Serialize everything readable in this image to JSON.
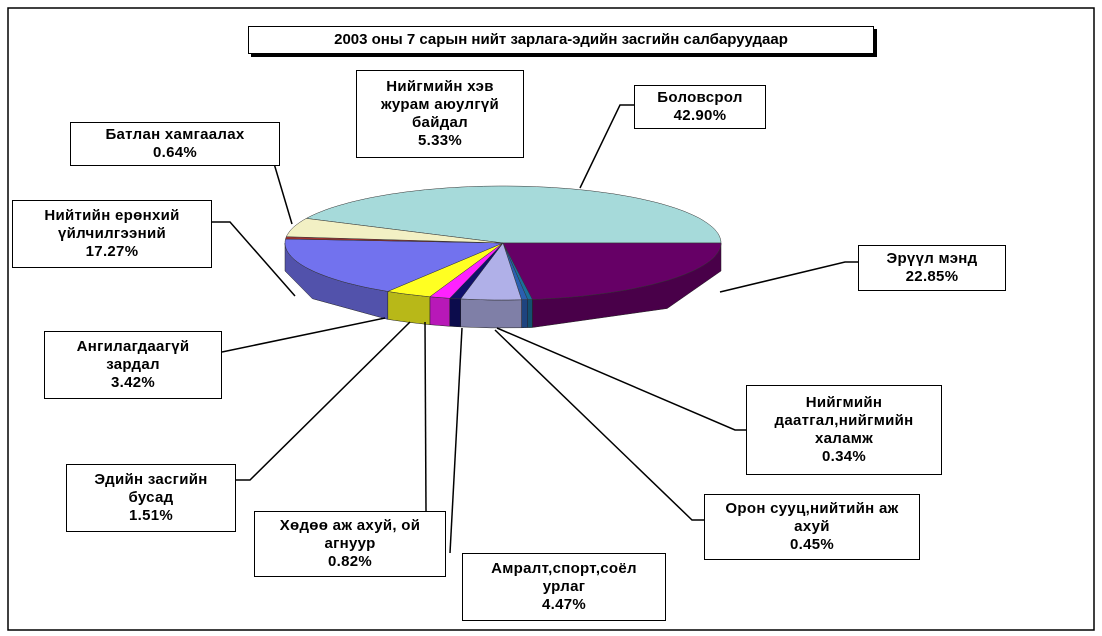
{
  "chart_data": {
    "type": "pie",
    "title": "2003 оны 7 сарын нийт зарлага-эдийн засгийн салбаруудаар",
    "categories": [
      "Боловсрол",
      "Эрүүл мэнд",
      "Нийгмийн даатгал,нийгмийн халамж",
      "Орон сууц,нийтийн аж ахуй",
      "Амралт,спорт,соёл урлаг",
      "Хөдөө аж ахуй, ой агнуур",
      "Эдийн засгийн бусад",
      "Ангилагдаагүй зардал",
      "Нийтийн ерөнхий үйлчилгээний",
      "Батлан хамгаалах",
      "Нийгмийн хэв журам аюулгүй байдал"
    ],
    "values": [
      42.9,
      22.85,
      0.34,
      0.45,
      4.47,
      0.82,
      1.51,
      3.42,
      17.27,
      0.64,
      5.33
    ],
    "value_labels": [
      "42.90%",
      "22.85%",
      "0.34%",
      "0.45%",
      "4.47%",
      "0.82%",
      "1.51%",
      "3.42%",
      "17.27%",
      "0.64%",
      "5.33%"
    ],
    "colors": [
      "#a6dada",
      "#660066",
      "#1a6f9a",
      "#2a5fb0",
      "#b0b0e8",
      "#10106a",
      "#ff22ff",
      "#ffff22",
      "#7272ee",
      "#a03030",
      "#f2f0c4"
    ]
  }
}
